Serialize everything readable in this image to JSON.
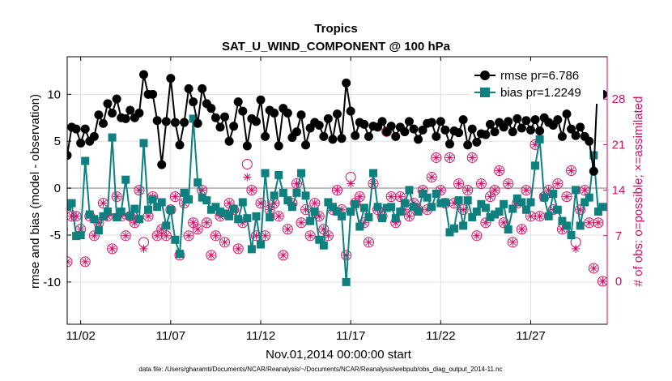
{
  "chart_data": {
    "type": "line",
    "title": "Tropics",
    "subtitle": "SAT_U_WIND_COMPONENT @ 100 hPa",
    "xlabel": "Nov.01,2014 00:00:00 start",
    "ylabel": "rmse and bias (model - observation)",
    "y2label": "# of obs: o=possible; ×=assimilated",
    "footnote": "data file: /Users/gharamti/Documents/NCAR/Reanalysis/~/Documents/NCAR/Reanalysis/webpub/obs_diag_output_2014-11.nc",
    "x_tick_labels": [
      "11/02",
      "11/07",
      "11/12",
      "11/17",
      "11/22",
      "11/27"
    ],
    "x_tick_values": [
      2,
      7,
      12,
      17,
      22,
      27
    ],
    "xlim": [
      1.25,
      31.25
    ],
    "y_tick_labels": [
      "-10",
      "-5",
      "0",
      "5",
      "10"
    ],
    "y_tick_values": [
      -10,
      -5,
      0,
      5,
      10
    ],
    "ylim": [
      -14.5,
      14
    ],
    "y2_tick_labels": [
      "0",
      "7",
      "14",
      "21",
      "28"
    ],
    "y2_tick_values": [
      0,
      7,
      14,
      21,
      28
    ],
    "y2lim": [
      -6.6,
      34.5
    ],
    "grid": true,
    "legend_position": "top-right",
    "colors": {
      "rmse": "#000000",
      "bias": "#0f8080",
      "obs": "#cc1166",
      "zero_line": "#bbbbbb",
      "grid": "#e0e0e0"
    },
    "series": [
      {
        "name": "rmse pr=6.786",
        "marker": "filled-circle",
        "x": [
          1.0,
          1.25,
          1.5,
          1.75,
          2.0,
          2.25,
          2.5,
          2.75,
          3.0,
          3.25,
          3.5,
          3.75,
          4.0,
          4.25,
          4.5,
          4.75,
          5.0,
          5.25,
          5.5,
          5.75,
          6.0,
          6.25,
          6.5,
          6.75,
          7.0,
          7.25,
          7.5,
          7.75,
          8.0,
          8.25,
          8.5,
          8.75,
          9.0,
          9.25,
          9.5,
          9.75,
          10.0,
          10.25,
          10.5,
          10.75,
          11.0,
          11.25,
          11.5,
          11.75,
          12.0,
          12.25,
          12.5,
          12.75,
          13.0,
          13.25,
          13.5,
          13.75,
          14.0,
          14.25,
          14.5,
          14.75,
          15.0,
          15.25,
          15.5,
          15.75,
          16.0,
          16.25,
          16.5,
          16.75,
          17.0,
          17.25,
          17.5,
          17.75,
          18.0,
          18.25,
          18.5,
          18.75,
          19.0,
          19.25,
          19.5,
          19.75,
          20.0,
          20.25,
          20.5,
          20.75,
          21.0,
          21.25,
          21.5,
          21.75,
          22.0,
          22.25,
          22.5,
          22.75,
          23.0,
          23.25,
          23.5,
          23.75,
          24.0,
          24.25,
          24.5,
          24.75,
          25.0,
          25.25,
          25.5,
          25.75,
          26.0,
          26.25,
          26.5,
          26.75,
          27.0,
          27.25,
          27.5,
          27.75,
          28.0,
          28.25,
          28.5,
          28.75,
          29.0,
          29.25,
          29.5,
          29.75,
          30.0,
          30.25,
          30.5,
          30.75,
          31.0
        ],
        "values": [
          3.0,
          3.5,
          6.5,
          6.3,
          4.8,
          6.3,
          5.0,
          5.5,
          7.8,
          6.9,
          9.0,
          8.0,
          9.5,
          7.5,
          7.4,
          8.3,
          7.5,
          8.0,
          12.1,
          10.0,
          10.0,
          7.2,
          2.5,
          7.1,
          11.7,
          7.0,
          4.6,
          7.0,
          10.6,
          9.2,
          6.9,
          10.6,
          9.0,
          8.5,
          7.5,
          6.5,
          7.6,
          5.0,
          6.6,
          9.2,
          8.2,
          4.5,
          7.4,
          7.1,
          9.4,
          5.5,
          8.3,
          8.0,
          4.5,
          8.5,
          8.0,
          5.4,
          6.0,
          7.8,
          4.6,
          6.4,
          7.0,
          6.7,
          5.5,
          7.4,
          5.2,
          7.9,
          5.3,
          11.2,
          8.2,
          5.6,
          7.0,
          6.8,
          5.5,
          6.6,
          6.5,
          7.1,
          6.0,
          6.6,
          5.5,
          6.5,
          6.0,
          7.1,
          6.3,
          5.2,
          6.2,
          6.9,
          7.0,
          5.5,
          7.1,
          6.2,
          4.7,
          6.1,
          5.9,
          7.3,
          4.6,
          6.3,
          4.9,
          5.8,
          5.7,
          6.8,
          6.0,
          7.0,
          6.5,
          7.1,
          6.0,
          7.4,
          6.4,
          7.2,
          6.2,
          7.3,
          6.1,
          7.5,
          7.0,
          6.7,
          7.3,
          5.5,
          7.9,
          6.3,
          5.6,
          6.5,
          5.5,
          5.0,
          1.8,
          12.5,
          10.0
        ]
      },
      {
        "name": "bias pr=1.2249",
        "marker": "filled-square",
        "x": [
          1.0,
          1.25,
          1.5,
          1.75,
          2.0,
          2.25,
          2.5,
          2.75,
          3.0,
          3.25,
          3.5,
          3.75,
          4.0,
          4.25,
          4.5,
          4.75,
          5.0,
          5.25,
          5.5,
          5.75,
          6.0,
          6.25,
          6.5,
          6.75,
          7.0,
          7.25,
          7.5,
          7.75,
          8.0,
          8.25,
          8.5,
          8.75,
          9.0,
          9.25,
          9.5,
          9.75,
          10.0,
          10.25,
          10.5,
          10.75,
          11.0,
          11.25,
          11.5,
          11.75,
          12.0,
          12.25,
          12.5,
          12.75,
          13.0,
          13.25,
          13.5,
          13.75,
          14.0,
          14.25,
          14.5,
          14.75,
          15.0,
          15.25,
          15.5,
          15.75,
          16.0,
          16.25,
          16.5,
          16.75,
          17.0,
          17.25,
          17.5,
          17.75,
          18.0,
          18.25,
          18.5,
          18.75,
          19.0,
          19.25,
          19.5,
          19.75,
          20.0,
          20.25,
          20.5,
          20.75,
          21.0,
          21.25,
          21.5,
          21.75,
          22.0,
          22.25,
          22.5,
          22.75,
          23.0,
          23.25,
          23.5,
          23.75,
          24.0,
          24.25,
          24.5,
          24.75,
          25.0,
          25.25,
          25.5,
          25.75,
          26.0,
          26.25,
          26.5,
          26.75,
          27.0,
          27.25,
          27.5,
          27.75,
          28.0,
          28.25,
          28.5,
          28.75,
          29.0,
          29.25,
          29.5,
          29.75,
          30.0,
          30.25,
          30.5,
          30.75,
          31.0
        ],
        "values": [
          -1.5,
          -2.0,
          -1.6,
          -5.1,
          -5.0,
          2.9,
          -2.8,
          -3.3,
          -4.5,
          -3.0,
          -2.5,
          5.4,
          -3.1,
          -2.5,
          0.9,
          -3.0,
          -2.2,
          -3.3,
          4.8,
          -2.3,
          -1.2,
          -2.0,
          -1.5,
          -4.0,
          -2.3,
          -5.5,
          -7.0,
          -0.5,
          -1.2,
          7.4,
          0.6,
          -1.0,
          -1.3,
          -2.3,
          -2.0,
          -2.5,
          -2.7,
          -3.0,
          -2.2,
          -3.3,
          -1.5,
          -3.2,
          -6.5,
          -3.0,
          -6.0,
          1.6,
          -3.1,
          -0.8,
          1.4,
          -0.5,
          -1.3,
          -2.0,
          -0.5,
          1.6,
          -0.8,
          -3.5,
          -2.5,
          -5.5,
          -6.1,
          -1.5,
          -2.0,
          -2.5,
          -3.0,
          -10.0,
          -2.5,
          -1.7,
          -4.1,
          -2.1,
          -3.1,
          1.6,
          -2.0,
          -3.2,
          -2.1,
          -2.0,
          -3.2,
          -2.5,
          -1.6,
          -0.2,
          -2.0,
          -2.5,
          -0.6,
          -1.0,
          -2.0,
          -0.6,
          -1.6,
          -1.5,
          -4.7,
          -4.3,
          -1.3,
          -4.0,
          -1.3,
          -3.1,
          -2.5,
          -1.7,
          -2.1,
          -3.1,
          -2.8,
          -2.5,
          -1.7,
          -4.4,
          -2.2,
          -1.1,
          -1.5,
          -2.3,
          -1.5,
          2.4,
          5.2,
          -1.0,
          -3.0,
          -0.6,
          -2.3,
          -3.5,
          -4.0,
          -5.0,
          -0.2,
          -4.0,
          -1.5,
          -1.0,
          3.5,
          -2.5,
          -2.0
        ]
      },
      {
        "name": "",
        "marker": "open-circle",
        "axis": "right",
        "x": [
          1.0,
          1.25,
          1.5,
          1.75,
          2.0,
          2.25,
          2.5,
          2.75,
          3.0,
          3.25,
          3.5,
          3.75,
          4.0,
          4.25,
          4.5,
          4.75,
          5.0,
          5.25,
          5.5,
          5.75,
          6.0,
          6.25,
          6.5,
          6.75,
          7.0,
          7.25,
          7.5,
          7.75,
          8.0,
          8.25,
          8.5,
          8.75,
          9.0,
          9.25,
          9.5,
          9.75,
          10.0,
          10.25,
          10.5,
          10.75,
          11.0,
          11.25,
          11.5,
          11.75,
          12.0,
          12.25,
          12.5,
          12.75,
          13.0,
          13.25,
          13.5,
          13.75,
          14.0,
          14.25,
          14.5,
          14.75,
          15.0,
          15.25,
          15.5,
          15.75,
          16.0,
          16.25,
          16.5,
          16.75,
          17.0,
          17.25,
          17.5,
          17.75,
          18.0,
          18.25,
          18.5,
          18.75,
          19.0,
          19.25,
          19.5,
          19.75,
          20.0,
          20.25,
          20.5,
          20.75,
          21.0,
          21.25,
          21.5,
          21.75,
          22.0,
          22.25,
          22.5,
          22.75,
          23.0,
          23.25,
          23.5,
          23.75,
          24.0,
          24.25,
          24.5,
          24.75,
          25.0,
          25.25,
          25.5,
          25.75,
          26.0,
          26.25,
          26.5,
          26.75,
          27.0,
          27.25,
          27.5,
          27.75,
          28.0,
          28.25,
          28.5,
          28.75,
          29.0,
          29.25,
          29.5,
          29.75,
          30.0,
          30.25,
          30.5,
          30.75,
          31.0
        ],
        "values": [
          8,
          3,
          10,
          10,
          8,
          3,
          10,
          7,
          9,
          12,
          10,
          5,
          13,
          10,
          7,
          10,
          9,
          14,
          6,
          10,
          13,
          7,
          8,
          7,
          11,
          13,
          4,
          12,
          7,
          9,
          8,
          14,
          9,
          4,
          7,
          10,
          6,
          12,
          11,
          5,
          9,
          18,
          14,
          7,
          12,
          7,
          11,
          12,
          10,
          4,
          8,
          12,
          15,
          9,
          11,
          7,
          12,
          10,
          8,
          7,
          11,
          14,
          11,
          4,
          16,
          12,
          13,
          9,
          6,
          15,
          11,
          10,
          23,
          13,
          9,
          13,
          11,
          10,
          12,
          11,
          14,
          11,
          16,
          19,
          14,
          12,
          19,
          12,
          15,
          11,
          14,
          19,
          7,
          15,
          9,
          13,
          14,
          17,
          9,
          15,
          6,
          12,
          8,
          14,
          10,
          21,
          10,
          13,
          14,
          11,
          15,
          8,
          13,
          17,
          6,
          11,
          14,
          9,
          2,
          9,
          0
        ]
      },
      {
        "name": "",
        "marker": "asterisk",
        "axis": "right",
        "x": [
          1.0,
          1.25,
          1.5,
          1.75,
          2.0,
          2.25,
          2.5,
          2.75,
          3.0,
          3.25,
          3.5,
          3.75,
          4.0,
          4.25,
          4.5,
          4.75,
          5.0,
          5.25,
          5.5,
          5.75,
          6.0,
          6.25,
          6.5,
          6.75,
          7.0,
          7.25,
          7.5,
          7.75,
          8.0,
          8.25,
          8.5,
          8.75,
          9.0,
          9.25,
          9.5,
          9.75,
          10.0,
          10.25,
          10.5,
          10.75,
          11.0,
          11.25,
          11.5,
          11.75,
          12.0,
          12.25,
          12.5,
          12.75,
          13.0,
          13.25,
          13.5,
          13.75,
          14.0,
          14.25,
          14.5,
          14.75,
          15.0,
          15.25,
          15.5,
          15.75,
          16.0,
          16.25,
          16.5,
          16.75,
          17.0,
          17.25,
          17.5,
          17.75,
          18.0,
          18.25,
          18.5,
          18.75,
          19.0,
          19.25,
          19.5,
          19.75,
          20.0,
          20.25,
          20.5,
          20.75,
          21.0,
          21.25,
          21.5,
          21.75,
          22.0,
          22.25,
          22.5,
          22.75,
          23.0,
          23.25,
          23.5,
          23.75,
          24.0,
          24.25,
          24.5,
          24.75,
          25.0,
          25.25,
          25.5,
          25.75,
          26.0,
          26.25,
          26.5,
          26.75,
          27.0,
          27.25,
          27.5,
          27.75,
          28.0,
          28.25,
          28.5,
          28.75,
          29.0,
          29.25,
          29.5,
          29.75,
          30.0,
          30.25,
          30.5,
          30.75,
          31.0
        ],
        "values": [
          8,
          3,
          10,
          10,
          8,
          3,
          10,
          7,
          9,
          12,
          10,
          5,
          13,
          10,
          7,
          10,
          9,
          14,
          5,
          10,
          13,
          7,
          8,
          7,
          11,
          13,
          4,
          12,
          7,
          9,
          8,
          14,
          9,
          4,
          7,
          10,
          6,
          12,
          11,
          5,
          9,
          16,
          14,
          7,
          12,
          7,
          11,
          12,
          10,
          4,
          8,
          12,
          15,
          9,
          11,
          7,
          12,
          10,
          8,
          7,
          11,
          14,
          11,
          4,
          15,
          12,
          13,
          9,
          6,
          15,
          11,
          10,
          23,
          13,
          9,
          13,
          11,
          10,
          12,
          11,
          14,
          11,
          16,
          19,
          14,
          12,
          19,
          12,
          15,
          11,
          14,
          19,
          7,
          15,
          9,
          13,
          14,
          17,
          9,
          15,
          6,
          12,
          8,
          14,
          10,
          21,
          10,
          13,
          14,
          11,
          15,
          8,
          13,
          17,
          5,
          11,
          14,
          9,
          2,
          9,
          0
        ]
      }
    ]
  }
}
